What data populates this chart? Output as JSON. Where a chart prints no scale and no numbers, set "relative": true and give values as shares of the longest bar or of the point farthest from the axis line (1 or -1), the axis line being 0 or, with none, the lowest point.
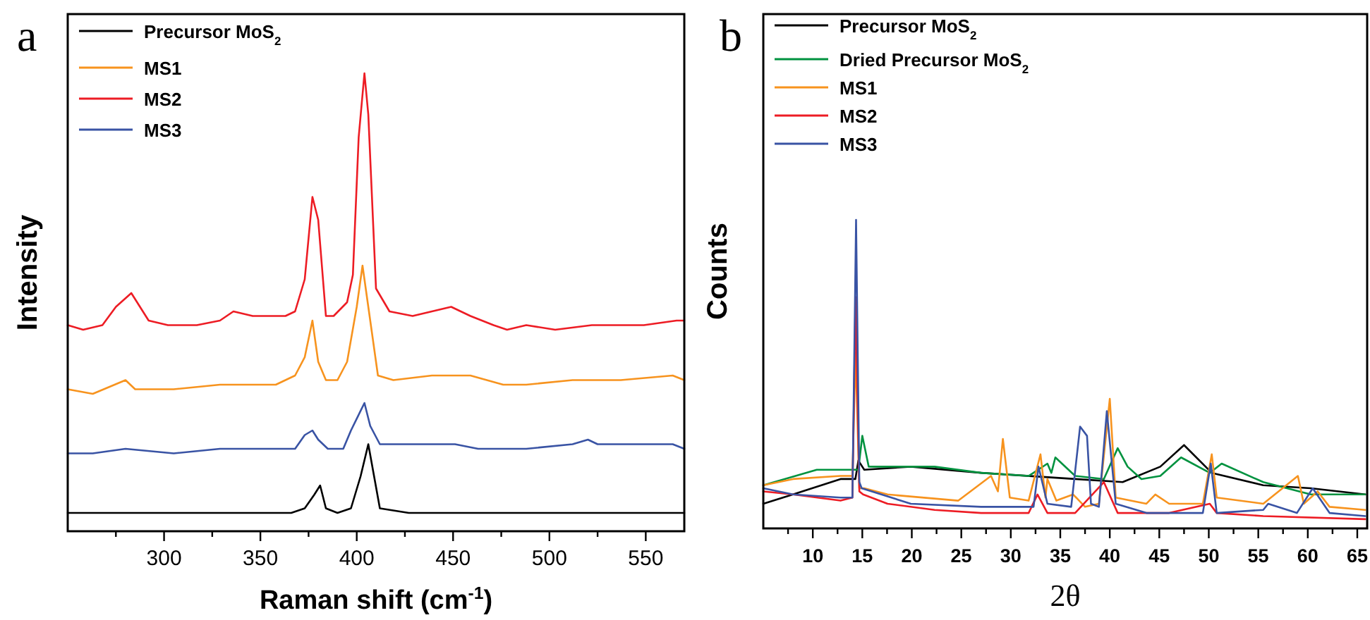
{
  "chart_data": [
    {
      "type": "line",
      "relative": true,
      "xlabel": "Raman shift (cm$^{-1}$)",
      "ylabel": "Intensity",
      "annotations": [
        "a"
      ],
      "legend": "top left",
      "xlim": [
        250,
        570
      ],
      "xticks": [
        {
          "value": 275,
          "label": null
        },
        300,
        {
          "value": 325,
          "label": null
        },
        350,
        {
          "value": 375,
          "label": null
        },
        400,
        {
          "value": 425,
          "label": null
        },
        450,
        {
          "value": 475,
          "label": null
        },
        500,
        {
          "value": 525,
          "label": null
        },
        550
      ],
      "series": [
        {
          "name": "Precursor MoS$_{2}$",
          "color": "#000000",
          "x": [
            250,
            268,
            278,
            284,
            290,
            317,
            366,
            373,
            378,
            381,
            384,
            390,
            397,
            402,
            406,
            409,
            412,
            427,
            449,
            463,
            488,
            512,
            537,
            570
          ],
          "values": [
            0.04,
            0.04,
            0.04,
            0.04,
            0.04,
            0.04,
            0.04,
            0.05,
            0.08,
            0.1,
            0.05,
            0.04,
            0.05,
            0.12,
            0.19,
            0.12,
            0.05,
            0.04,
            0.04,
            0.04,
            0.04,
            0.04,
            0.04,
            0.04
          ]
        },
        {
          "name": "MS1",
          "color": "#f7931e",
          "x": [
            250,
            263,
            280,
            285,
            305,
            329,
            341,
            358,
            368,
            373,
            377,
            380,
            384,
            390,
            395,
            400,
            403,
            406,
            411,
            419,
            439,
            446,
            459,
            476,
            488,
            512,
            537,
            564,
            570
          ],
          "values": [
            0.31,
            0.3,
            0.33,
            0.31,
            0.31,
            0.32,
            0.32,
            0.32,
            0.34,
            0.38,
            0.46,
            0.37,
            0.33,
            0.33,
            0.37,
            0.49,
            0.58,
            0.49,
            0.34,
            0.33,
            0.34,
            0.34,
            0.34,
            0.32,
            0.32,
            0.33,
            0.33,
            0.34,
            0.33
          ]
        },
        {
          "name": "MS2",
          "color": "#ed1c24",
          "x": [
            250,
            258,
            268,
            275,
            283,
            289,
            292,
            302,
            317,
            329,
            336,
            346,
            358,
            363,
            368,
            373,
            377,
            380,
            384,
            388,
            395,
            398,
            401,
            404,
            406,
            410,
            417,
            429,
            439,
            449,
            459,
            471,
            478,
            488,
            503,
            522,
            537,
            549,
            566,
            570
          ],
          "values": [
            0.45,
            0.44,
            0.45,
            0.49,
            0.52,
            0.48,
            0.46,
            0.45,
            0.45,
            0.46,
            0.48,
            0.47,
            0.47,
            0.47,
            0.48,
            0.55,
            0.73,
            0.68,
            0.47,
            0.47,
            0.5,
            0.56,
            0.86,
            1.0,
            0.91,
            0.53,
            0.48,
            0.47,
            0.48,
            0.49,
            0.47,
            0.45,
            0.44,
            0.45,
            0.44,
            0.45,
            0.45,
            0.45,
            0.46,
            0.46
          ]
        },
        {
          "name": "MS3",
          "color": "#3953a4",
          "x": [
            250,
            263,
            280,
            305,
            329,
            354,
            368,
            373,
            377,
            380,
            385,
            393,
            397,
            404,
            407,
            412,
            439,
            451,
            463,
            488,
            512,
            520,
            525,
            549,
            564,
            570
          ],
          "values": [
            0.17,
            0.17,
            0.18,
            0.17,
            0.18,
            0.18,
            0.18,
            0.21,
            0.22,
            0.2,
            0.18,
            0.18,
            0.22,
            0.28,
            0.23,
            0.19,
            0.19,
            0.19,
            0.18,
            0.18,
            0.19,
            0.2,
            0.19,
            0.19,
            0.19,
            0.18
          ]
        }
      ]
    },
    {
      "type": "line",
      "relative": true,
      "xlabel": "2θ",
      "ylabel": "Counts",
      "annotations": [
        "b"
      ],
      "legend": "top left",
      "xlim": [
        5,
        66
      ],
      "xticks": [
        {
          "value": 7.5,
          "label": null
        },
        10,
        {
          "value": 12.5,
          "label": null
        },
        15,
        {
          "value": 17.5,
          "label": null
        },
        20,
        {
          "value": 22.5,
          "label": null
        },
        25,
        {
          "value": 27.5,
          "label": null
        },
        30,
        {
          "value": 32.5,
          "label": null
        },
        35,
        {
          "value": 37.5,
          "label": null
        },
        40,
        {
          "value": 42.5,
          "label": null
        },
        45,
        {
          "value": 47.5,
          "label": null
        },
        50,
        {
          "value": 52.5,
          "label": null
        },
        55,
        {
          "value": 57.5,
          "label": null
        },
        60,
        {
          "value": 62.5,
          "label": null
        },
        65
      ],
      "series": [
        {
          "name": "Precursor MoS$_{2}$",
          "color": "#000000",
          "x": [
            5,
            8,
            12.8,
            14.3,
            14.6,
            15.2,
            19.9,
            27,
            36.5,
            41.3,
            45.1,
            47.5,
            50.3,
            55.5,
            60.3,
            65.8
          ],
          "values": [
            0.08,
            0.11,
            0.16,
            0.16,
            0.22,
            0.19,
            0.2,
            0.18,
            0.16,
            0.15,
            0.2,
            0.27,
            0.18,
            0.14,
            0.13,
            0.11
          ]
        },
        {
          "name": "Dried Precursor MoS$_{2}$",
          "color": "#00923f",
          "x": [
            5,
            10.4,
            14.6,
            15.0,
            15.65,
            22.3,
            27,
            31.8,
            33.7,
            34.1,
            34.5,
            36.5,
            39.4,
            40.8,
            41.8,
            43.2,
            45.1,
            47.2,
            50.1,
            51.3,
            55.5,
            60.3,
            65.8
          ],
          "values": [
            0.14,
            0.19,
            0.19,
            0.3,
            0.2,
            0.2,
            0.18,
            0.17,
            0.21,
            0.18,
            0.23,
            0.17,
            0.16,
            0.26,
            0.2,
            0.16,
            0.17,
            0.23,
            0.18,
            0.21,
            0.15,
            0.11,
            0.11
          ]
        },
        {
          "name": "MS1",
          "color": "#f7931e",
          "x": [
            5,
            8,
            12.8,
            14.0,
            14.32,
            14.7,
            15.2,
            17.55,
            24.7,
            28.0,
            28.7,
            29.2,
            29.9,
            31.8,
            33.0,
            33.5,
            33.7,
            34.6,
            36.3,
            37.5,
            38.9,
            40.0,
            40.6,
            43.7,
            44.6,
            46.0,
            49.4,
            50.3,
            50.8,
            55.5,
            59.0,
            59.6,
            61.0,
            62.2,
            65.8
          ],
          "values": [
            0.14,
            0.16,
            0.17,
            0.17,
            0.57,
            0.13,
            0.13,
            0.11,
            0.09,
            0.17,
            0.12,
            0.29,
            0.1,
            0.09,
            0.24,
            0.1,
            0.16,
            0.09,
            0.11,
            0.07,
            0.08,
            0.42,
            0.1,
            0.08,
            0.11,
            0.08,
            0.08,
            0.24,
            0.1,
            0.08,
            0.17,
            0.08,
            0.12,
            0.07,
            0.06
          ]
        },
        {
          "name": "MS2",
          "color": "#ed1c24",
          "x": [
            5,
            8,
            12.8,
            14.0,
            14.32,
            14.7,
            15.08,
            17.55,
            22.3,
            27,
            31.8,
            32.7,
            33.7,
            36.5,
            39.4,
            40.8,
            46.0,
            50.1,
            50.8,
            55.5,
            65.8
          ],
          "values": [
            0.12,
            0.11,
            0.09,
            0.1,
            0.75,
            0.12,
            0.11,
            0.08,
            0.06,
            0.05,
            0.05,
            0.11,
            0.05,
            0.05,
            0.15,
            0.05,
            0.05,
            0.08,
            0.05,
            0.04,
            0.03
          ]
        },
        {
          "name": "MS3",
          "color": "#3953a4",
          "x": [
            5,
            8,
            12.8,
            14.0,
            14.37,
            14.7,
            14.94,
            19.9,
            27,
            32.3,
            32.8,
            33.7,
            36.1,
            37.0,
            37.7,
            38.1,
            38.9,
            39.7,
            40.6,
            43.7,
            49.4,
            50.2,
            50.8,
            55.5,
            56.0,
            58.9,
            60.5,
            62.2,
            65.8
          ],
          "values": [
            0.13,
            0.11,
            0.1,
            0.1,
            1.0,
            0.15,
            0.13,
            0.08,
            0.07,
            0.07,
            0.2,
            0.08,
            0.07,
            0.33,
            0.3,
            0.08,
            0.07,
            0.38,
            0.08,
            0.05,
            0.05,
            0.21,
            0.05,
            0.06,
            0.08,
            0.05,
            0.13,
            0.05,
            0.04
          ]
        }
      ]
    }
  ]
}
